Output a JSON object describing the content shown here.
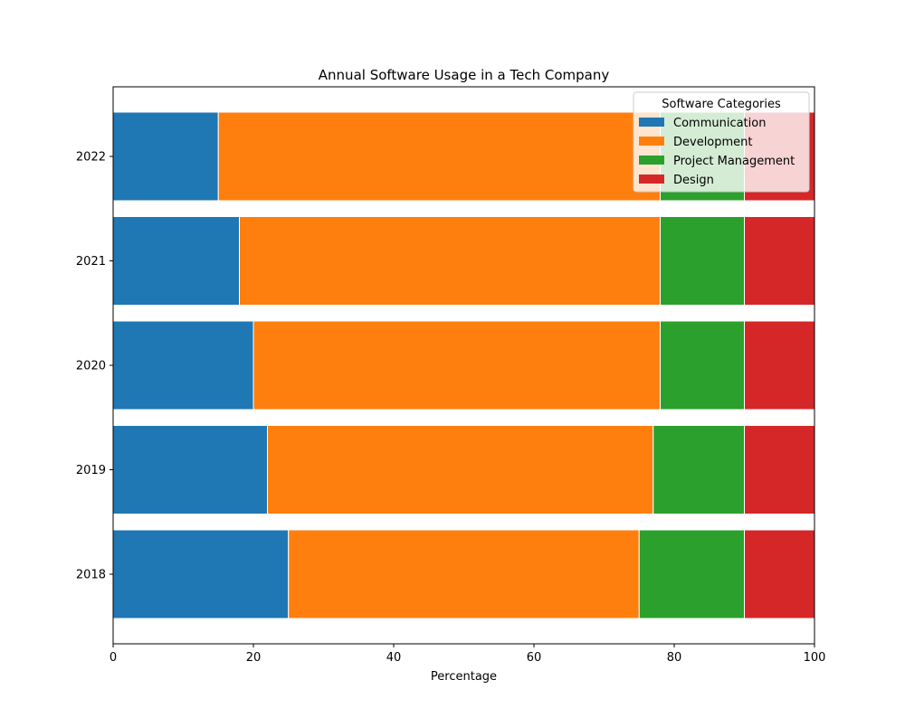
{
  "chart_data": {
    "type": "bar",
    "orientation": "horizontal",
    "stacked": true,
    "title": "Annual Software Usage in a Tech Company",
    "xlabel": "Percentage",
    "ylabel": "",
    "xlim": [
      0,
      100
    ],
    "x_ticks": [
      "0",
      "20",
      "40",
      "60",
      "80",
      "100"
    ],
    "categories": [
      "2018",
      "2019",
      "2020",
      "2021",
      "2022"
    ],
    "series": [
      {
        "name": "Communication",
        "color": "#1f77b4",
        "values": [
          25,
          22,
          20,
          18,
          15
        ]
      },
      {
        "name": "Development",
        "color": "#ff7f0e",
        "values": [
          50,
          55,
          58,
          60,
          63
        ]
      },
      {
        "name": "Project Management",
        "color": "#2ca02c",
        "values": [
          15,
          13,
          12,
          12,
          12
        ]
      },
      {
        "name": "Design",
        "color": "#d62728",
        "values": [
          10,
          10,
          10,
          10,
          10
        ]
      }
    ],
    "legend": {
      "title": "Software Categories",
      "placement": "top-right"
    },
    "grid": false
  }
}
